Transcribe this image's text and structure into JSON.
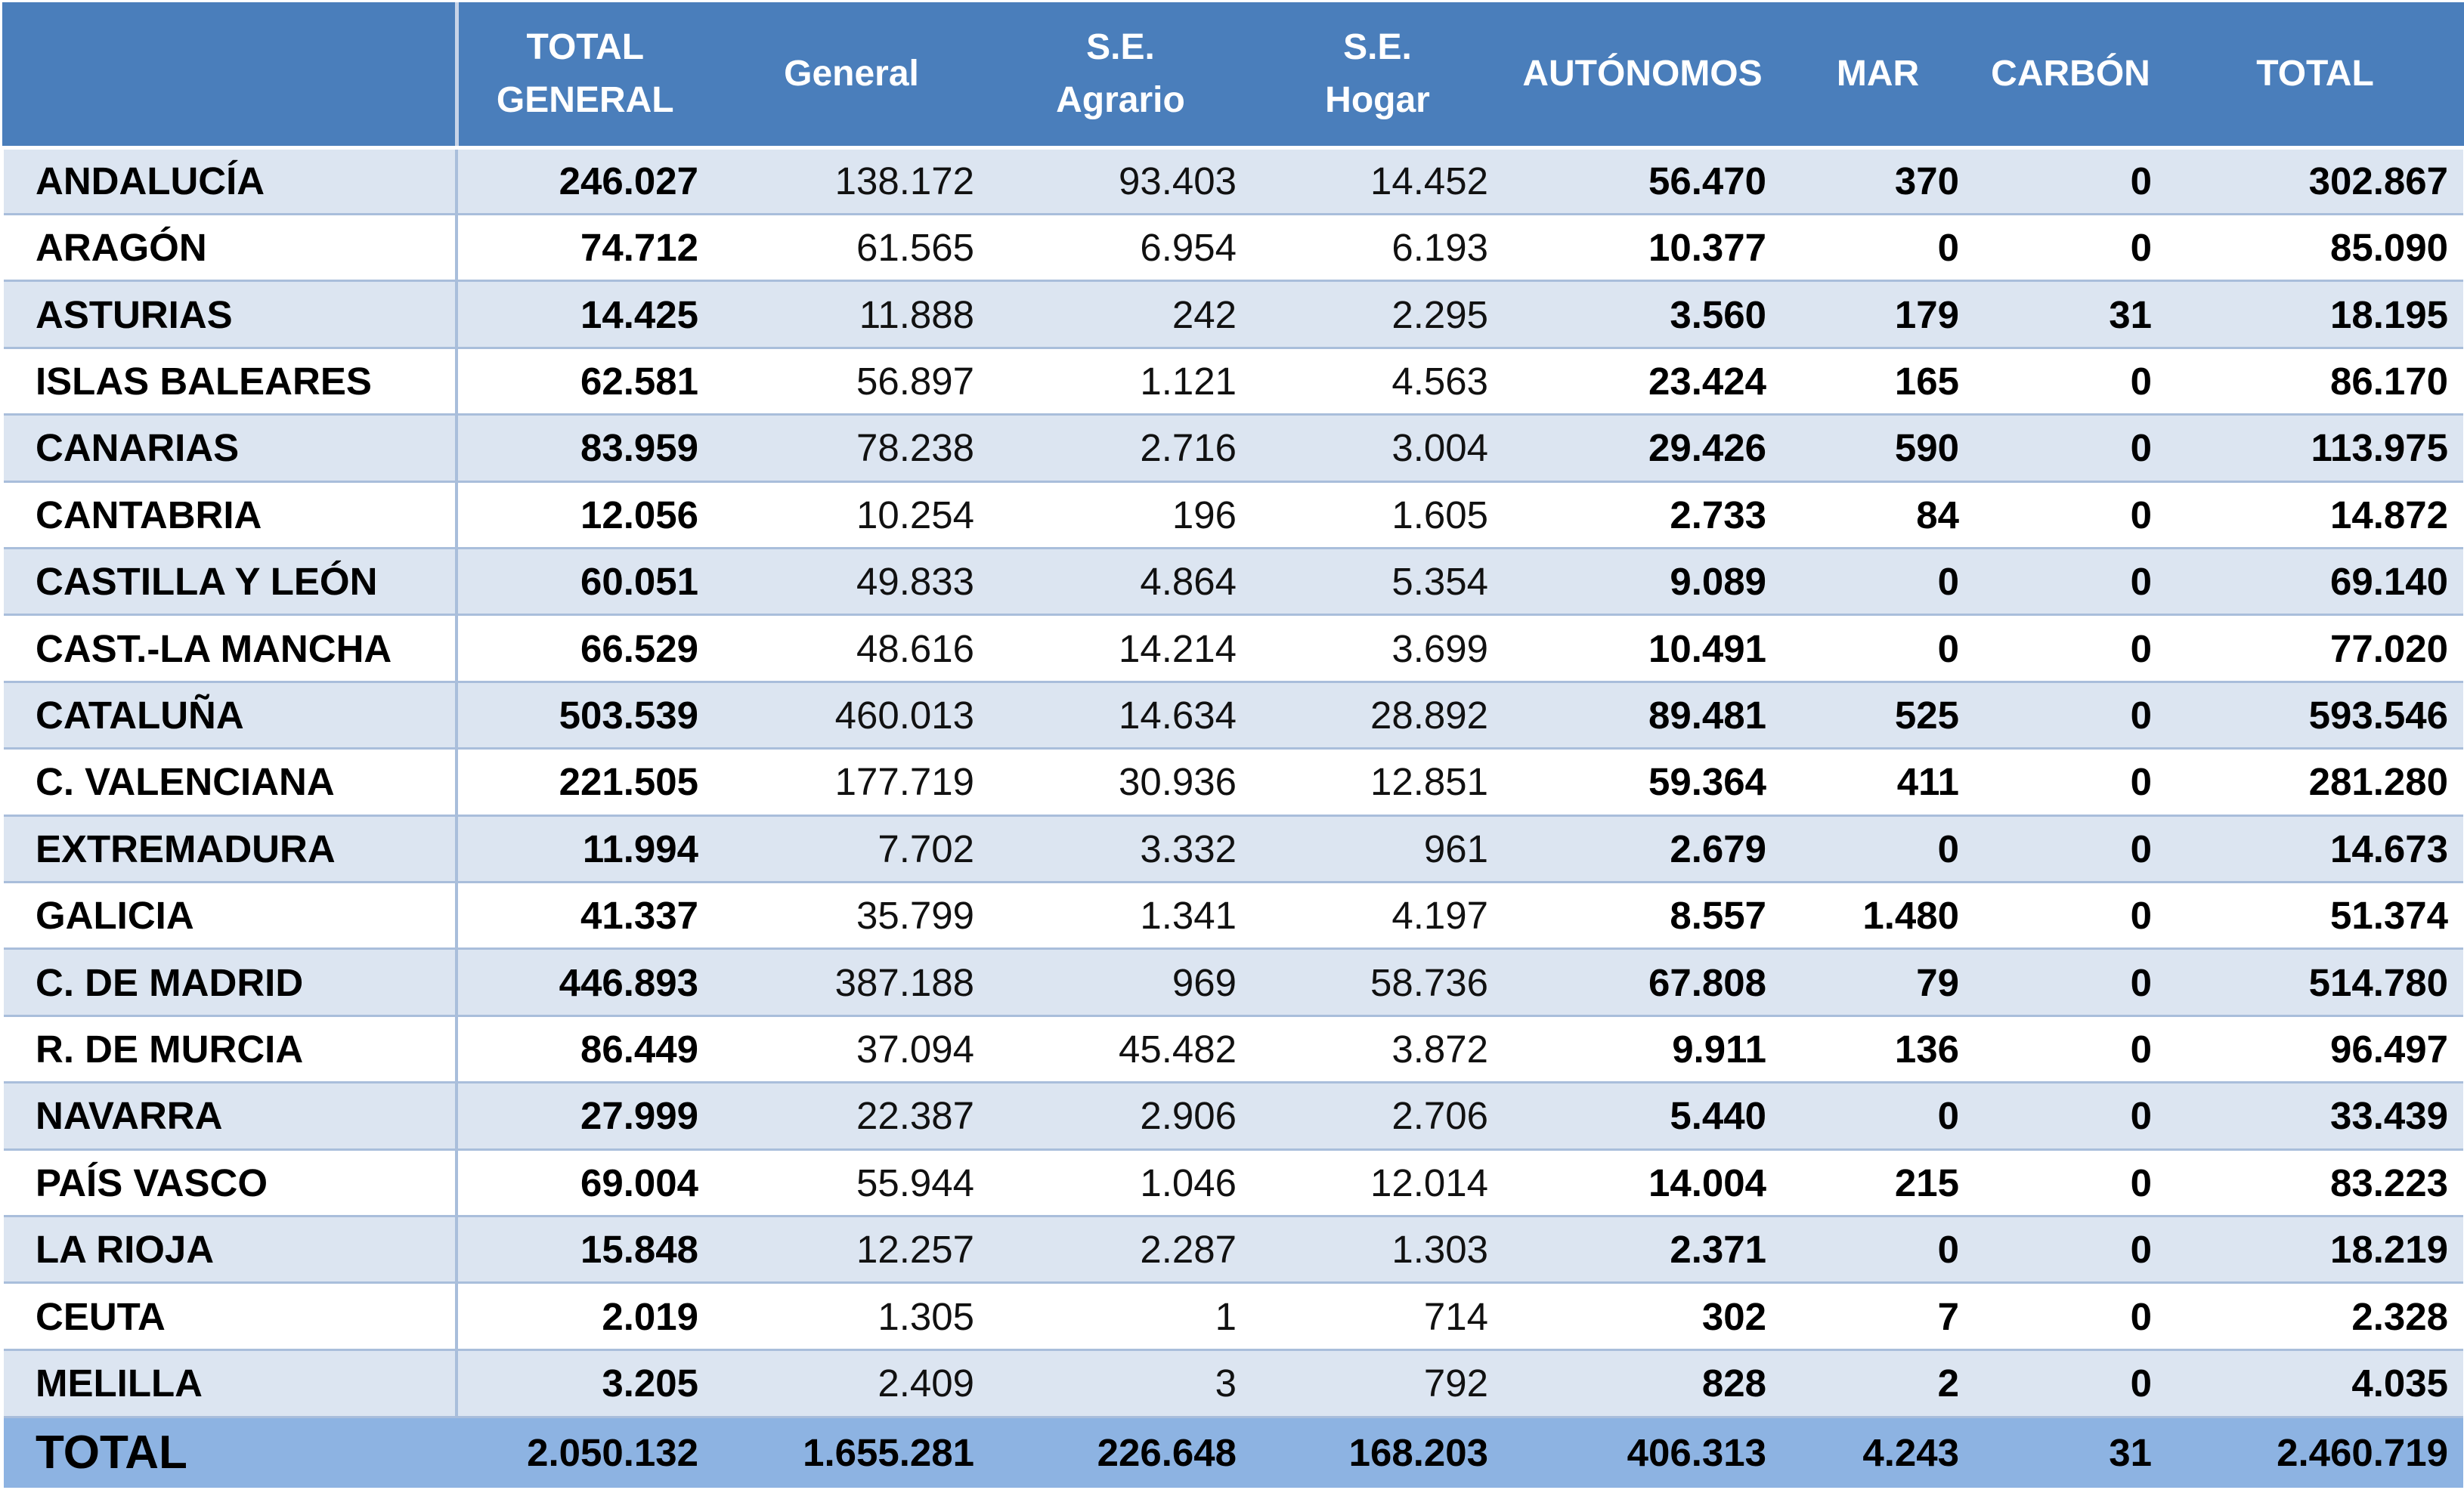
{
  "columns": [
    {
      "line1": "",
      "line2": ""
    },
    {
      "line1": "TOTAL",
      "line2": "GENERAL"
    },
    {
      "line1": "General",
      "line2": ""
    },
    {
      "line1": "S.E.",
      "line2": "Agrario"
    },
    {
      "line1": "S.E.",
      "line2": "Hogar"
    },
    {
      "line1": "AUTÓNOMOS",
      "line2": ""
    },
    {
      "line1": "MAR",
      "line2": ""
    },
    {
      "line1": "CARBÓN",
      "line2": ""
    },
    {
      "line1": "TOTAL",
      "line2": ""
    }
  ],
  "rows": [
    {
      "region": "ANDALUCÍA",
      "total_general": "246.027",
      "general": "138.172",
      "se_agrario": "93.403",
      "se_hogar": "14.452",
      "autonomos": "56.470",
      "mar": "370",
      "carbon": "0",
      "total": "302.867"
    },
    {
      "region": "ARAGÓN",
      "total_general": "74.712",
      "general": "61.565",
      "se_agrario": "6.954",
      "se_hogar": "6.193",
      "autonomos": "10.377",
      "mar": "0",
      "carbon": "0",
      "total": "85.090"
    },
    {
      "region": "ASTURIAS",
      "total_general": "14.425",
      "general": "11.888",
      "se_agrario": "242",
      "se_hogar": "2.295",
      "autonomos": "3.560",
      "mar": "179",
      "carbon": "31",
      "total": "18.195"
    },
    {
      "region": "ISLAS BALEARES",
      "total_general": "62.581",
      "general": "56.897",
      "se_agrario": "1.121",
      "se_hogar": "4.563",
      "autonomos": "23.424",
      "mar": "165",
      "carbon": "0",
      "total": "86.170"
    },
    {
      "region": "CANARIAS",
      "total_general": "83.959",
      "general": "78.238",
      "se_agrario": "2.716",
      "se_hogar": "3.004",
      "autonomos": "29.426",
      "mar": "590",
      "carbon": "0",
      "total": "113.975"
    },
    {
      "region": "CANTABRIA",
      "total_general": "12.056",
      "general": "10.254",
      "se_agrario": "196",
      "se_hogar": "1.605",
      "autonomos": "2.733",
      "mar": "84",
      "carbon": "0",
      "total": "14.872"
    },
    {
      "region": "CASTILLA Y LEÓN",
      "total_general": "60.051",
      "general": "49.833",
      "se_agrario": "4.864",
      "se_hogar": "5.354",
      "autonomos": "9.089",
      "mar": "0",
      "carbon": "0",
      "total": "69.140"
    },
    {
      "region": "CAST.-LA MANCHA",
      "total_general": "66.529",
      "general": "48.616",
      "se_agrario": "14.214",
      "se_hogar": "3.699",
      "autonomos": "10.491",
      "mar": "0",
      "carbon": "0",
      "total": "77.020"
    },
    {
      "region": "CATALUÑA",
      "total_general": "503.539",
      "general": "460.013",
      "se_agrario": "14.634",
      "se_hogar": "28.892",
      "autonomos": "89.481",
      "mar": "525",
      "carbon": "0",
      "total": "593.546"
    },
    {
      "region": "C. VALENCIANA",
      "total_general": "221.505",
      "general": "177.719",
      "se_agrario": "30.936",
      "se_hogar": "12.851",
      "autonomos": "59.364",
      "mar": "411",
      "carbon": "0",
      "total": "281.280"
    },
    {
      "region": "EXTREMADURA",
      "total_general": "11.994",
      "general": "7.702",
      "se_agrario": "3.332",
      "se_hogar": "961",
      "autonomos": "2.679",
      "mar": "0",
      "carbon": "0",
      "total": "14.673"
    },
    {
      "region": "GALICIA",
      "total_general": "41.337",
      "general": "35.799",
      "se_agrario": "1.341",
      "se_hogar": "4.197",
      "autonomos": "8.557",
      "mar": "1.480",
      "carbon": "0",
      "total": "51.374"
    },
    {
      "region": "C. DE MADRID",
      "total_general": "446.893",
      "general": "387.188",
      "se_agrario": "969",
      "se_hogar": "58.736",
      "autonomos": "67.808",
      "mar": "79",
      "carbon": "0",
      "total": "514.780"
    },
    {
      "region": "R. DE MURCIA",
      "total_general": "86.449",
      "general": "37.094",
      "se_agrario": "45.482",
      "se_hogar": "3.872",
      "autonomos": "9.911",
      "mar": "136",
      "carbon": "0",
      "total": "96.497"
    },
    {
      "region": "NAVARRA",
      "total_general": "27.999",
      "general": "22.387",
      "se_agrario": "2.906",
      "se_hogar": "2.706",
      "autonomos": "5.440",
      "mar": "0",
      "carbon": "0",
      "total": "33.439"
    },
    {
      "region": "PAÍS VASCO",
      "total_general": "69.004",
      "general": "55.944",
      "se_agrario": "1.046",
      "se_hogar": "12.014",
      "autonomos": "14.004",
      "mar": "215",
      "carbon": "0",
      "total": "83.223"
    },
    {
      "region": "LA RIOJA",
      "total_general": "15.848",
      "general": "12.257",
      "se_agrario": "2.287",
      "se_hogar": "1.303",
      "autonomos": "2.371",
      "mar": "0",
      "carbon": "0",
      "total": "18.219"
    },
    {
      "region": "CEUTA",
      "total_general": "2.019",
      "general": "1.305",
      "se_agrario": "1",
      "se_hogar": "714",
      "autonomos": "302",
      "mar": "7",
      "carbon": "0",
      "total": "2.328"
    },
    {
      "region": "MELILLA",
      "total_general": "3.205",
      "general": "2.409",
      "se_agrario": "3",
      "se_hogar": "792",
      "autonomos": "828",
      "mar": "2",
      "carbon": "0",
      "total": "4.035"
    }
  ],
  "totals": {
    "region": "TOTAL",
    "total_general": "2.050.132",
    "general": "1.655.281",
    "se_agrario": "226.648",
    "se_hogar": "168.203",
    "autonomos": "406.313",
    "mar": "4.243",
    "carbon": "31",
    "total": "2.460.719"
  },
  "colors": {
    "header_bg": "#4a7ebb",
    "band_bg": "#dce5f1",
    "total_bg": "#8db3e2",
    "grid": "#a9bedb"
  }
}
